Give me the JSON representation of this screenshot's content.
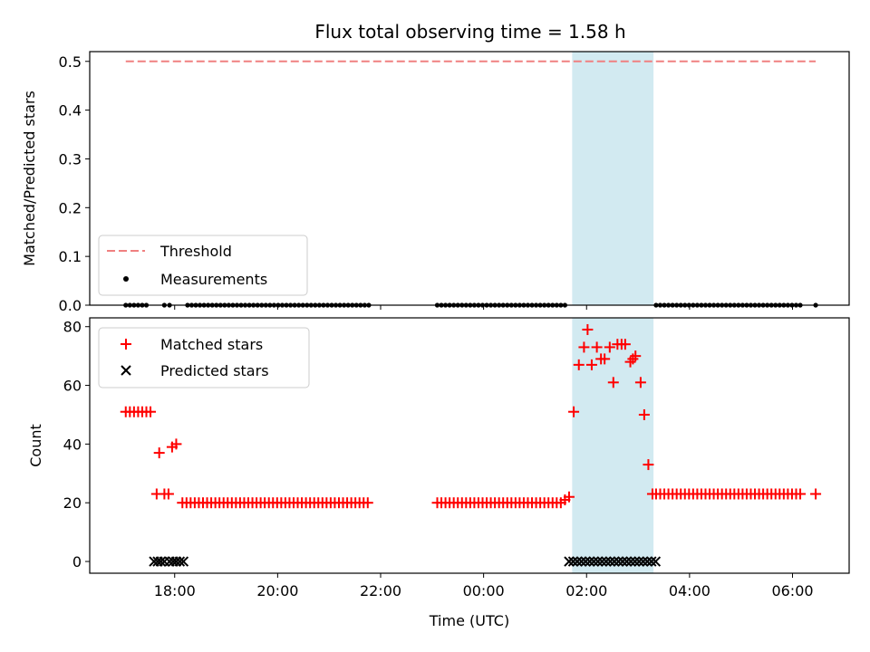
{
  "chart_data": [
    {
      "type": "scatter",
      "title": "Flux total observing time = 1.58 h",
      "xlabel": "",
      "ylabel": "Matched/Predicted stars",
      "ylim": [
        0,
        0.52
      ],
      "yticks": [
        0.0,
        0.1,
        0.2,
        0.3,
        0.4,
        0.5
      ],
      "x_axis": "time (UTC), hours relative to 00:00 on night start; 18:00 = -6",
      "xlim": [
        -7.65,
        7.1
      ],
      "threshold": {
        "name": "Threshold",
        "value": 0.5,
        "x_range": [
          -6.95,
          6.45
        ],
        "color": "#f08080"
      },
      "observing_window": {
        "start": 1.72,
        "end": 3.3,
        "color": "#add8e6"
      },
      "series": [
        {
          "name": "Measurements",
          "color": "#000000",
          "segments": [
            {
              "from": -6.95,
              "to": -6.55,
              "step": 0.08,
              "value": 0
            },
            {
              "from": -6.2,
              "to": -6.1,
              "step": 0.1,
              "value": 0
            },
            {
              "from": -5.75,
              "to": -2.2,
              "step": 0.08,
              "value": 0
            },
            {
              "from": -0.9,
              "to": 1.65,
              "step": 0.08,
              "value": 0
            },
            {
              "from": 3.35,
              "to": 6.2,
              "step": 0.08,
              "value": 0
            },
            {
              "from": 6.45,
              "to": 6.45,
              "step": 0.1,
              "value": 0
            }
          ]
        }
      ],
      "legend": {
        "placement": "lower-left",
        "entries": [
          "Threshold",
          "Measurements"
        ]
      }
    },
    {
      "type": "scatter",
      "title": "",
      "xlabel": "Time (UTC)",
      "ylabel": "Count",
      "ylim": [
        -4,
        83
      ],
      "yticks": [
        0,
        20,
        40,
        60,
        80
      ],
      "xticks": [
        "18:00",
        "20:00",
        "22:00",
        "00:00",
        "02:00",
        "04:00",
        "06:00"
      ],
      "xtick_values": [
        -6,
        -4,
        -2,
        0,
        2,
        4,
        6
      ],
      "observing_window": {
        "start": 1.72,
        "end": 3.3,
        "color": "#add8e6"
      },
      "series": [
        {
          "name": "Matched stars",
          "marker": "plus",
          "color": "#ff0000",
          "points": [
            [
              -6.95,
              51
            ],
            [
              -6.87,
              51
            ],
            [
              -6.79,
              51
            ],
            [
              -6.71,
              51
            ],
            [
              -6.63,
              51
            ],
            [
              -6.55,
              51
            ],
            [
              -6.47,
              51
            ],
            [
              -6.35,
              23
            ],
            [
              -6.3,
              37
            ],
            [
              -6.2,
              23
            ],
            [
              -6.12,
              23
            ],
            [
              -6.05,
              39
            ],
            [
              -5.97,
              40
            ],
            [
              -5.85,
              20
            ],
            [
              -5.77,
              20
            ],
            [
              -5.69,
              20
            ],
            [
              -5.61,
              20
            ],
            [
              -5.53,
              20
            ],
            [
              -5.45,
              20
            ],
            [
              -5.37,
              20
            ],
            [
              -5.29,
              20
            ],
            [
              -5.21,
              20
            ],
            [
              -5.13,
              20
            ],
            [
              -5.05,
              20
            ],
            [
              -4.97,
              20
            ],
            [
              -4.89,
              20
            ],
            [
              -4.81,
              20
            ],
            [
              -4.73,
              20
            ],
            [
              -4.65,
              20
            ],
            [
              -4.57,
              20
            ],
            [
              -4.49,
              20
            ],
            [
              -4.41,
              20
            ],
            [
              -4.33,
              20
            ],
            [
              -4.25,
              20
            ],
            [
              -4.17,
              20
            ],
            [
              -4.09,
              20
            ],
            [
              -4.01,
              20
            ],
            [
              -3.93,
              20
            ],
            [
              -3.85,
              20
            ],
            [
              -3.77,
              20
            ],
            [
              -3.69,
              20
            ],
            [
              -3.61,
              20
            ],
            [
              -3.53,
              20
            ],
            [
              -3.45,
              20
            ],
            [
              -3.37,
              20
            ],
            [
              -3.29,
              20
            ],
            [
              -3.21,
              20
            ],
            [
              -3.13,
              20
            ],
            [
              -3.05,
              20
            ],
            [
              -2.97,
              20
            ],
            [
              -2.89,
              20
            ],
            [
              -2.81,
              20
            ],
            [
              -2.73,
              20
            ],
            [
              -2.65,
              20
            ],
            [
              -2.57,
              20
            ],
            [
              -2.49,
              20
            ],
            [
              -2.41,
              20
            ],
            [
              -2.33,
              20
            ],
            [
              -2.25,
              20
            ],
            [
              -0.9,
              20
            ],
            [
              -0.82,
              20
            ],
            [
              -0.74,
              20
            ],
            [
              -0.66,
              20
            ],
            [
              -0.58,
              20
            ],
            [
              -0.5,
              20
            ],
            [
              -0.42,
              20
            ],
            [
              -0.34,
              20
            ],
            [
              -0.26,
              20
            ],
            [
              -0.18,
              20
            ],
            [
              -0.1,
              20
            ],
            [
              -0.02,
              20
            ],
            [
              0.06,
              20
            ],
            [
              0.14,
              20
            ],
            [
              0.22,
              20
            ],
            [
              0.3,
              20
            ],
            [
              0.38,
              20
            ],
            [
              0.46,
              20
            ],
            [
              0.54,
              20
            ],
            [
              0.62,
              20
            ],
            [
              0.7,
              20
            ],
            [
              0.78,
              20
            ],
            [
              0.86,
              20
            ],
            [
              0.94,
              20
            ],
            [
              1.02,
              20
            ],
            [
              1.1,
              20
            ],
            [
              1.18,
              20
            ],
            [
              1.26,
              20
            ],
            [
              1.34,
              20
            ],
            [
              1.42,
              20
            ],
            [
              1.5,
              20
            ],
            [
              1.58,
              21
            ],
            [
              1.66,
              22
            ],
            [
              1.75,
              51
            ],
            [
              1.85,
              67
            ],
            [
              1.95,
              73
            ],
            [
              2.02,
              79
            ],
            [
              2.1,
              67
            ],
            [
              2.2,
              73
            ],
            [
              2.28,
              69
            ],
            [
              2.35,
              69
            ],
            [
              2.45,
              73
            ],
            [
              2.52,
              61
            ],
            [
              2.6,
              74
            ],
            [
              2.68,
              74
            ],
            [
              2.75,
              74
            ],
            [
              2.85,
              68
            ],
            [
              2.9,
              69
            ],
            [
              2.95,
              70
            ],
            [
              3.05,
              61
            ],
            [
              3.12,
              50
            ],
            [
              3.2,
              33
            ],
            [
              3.28,
              23
            ],
            [
              3.35,
              23
            ],
            [
              3.43,
              23
            ],
            [
              3.51,
              23
            ],
            [
              3.59,
              23
            ],
            [
              3.67,
              23
            ],
            [
              3.75,
              23
            ],
            [
              3.83,
              23
            ],
            [
              3.91,
              23
            ],
            [
              3.99,
              23
            ],
            [
              4.07,
              23
            ],
            [
              4.15,
              23
            ],
            [
              4.23,
              23
            ],
            [
              4.31,
              23
            ],
            [
              4.39,
              23
            ],
            [
              4.47,
              23
            ],
            [
              4.55,
              23
            ],
            [
              4.63,
              23
            ],
            [
              4.71,
              23
            ],
            [
              4.79,
              23
            ],
            [
              4.87,
              23
            ],
            [
              4.95,
              23
            ],
            [
              5.03,
              23
            ],
            [
              5.11,
              23
            ],
            [
              5.19,
              23
            ],
            [
              5.27,
              23
            ],
            [
              5.35,
              23
            ],
            [
              5.43,
              23
            ],
            [
              5.51,
              23
            ],
            [
              5.59,
              23
            ],
            [
              5.67,
              23
            ],
            [
              5.75,
              23
            ],
            [
              5.83,
              23
            ],
            [
              5.91,
              23
            ],
            [
              5.99,
              23
            ],
            [
              6.07,
              23
            ],
            [
              6.15,
              23
            ],
            [
              6.45,
              23
            ]
          ]
        },
        {
          "name": "Predicted stars",
          "marker": "x",
          "color": "#000000",
          "points": [
            [
              -6.4,
              0
            ],
            [
              -6.33,
              0
            ],
            [
              -6.27,
              0
            ],
            [
              -6.2,
              0
            ],
            [
              -6.1,
              0
            ],
            [
              -6.03,
              0
            ],
            [
              -5.97,
              0
            ],
            [
              -5.9,
              0
            ],
            [
              -5.83,
              0
            ],
            [
              1.66,
              0
            ],
            [
              1.74,
              0
            ],
            [
              1.82,
              0
            ],
            [
              1.9,
              0
            ],
            [
              1.98,
              0
            ],
            [
              2.06,
              0
            ],
            [
              2.14,
              0
            ],
            [
              2.22,
              0
            ],
            [
              2.3,
              0
            ],
            [
              2.38,
              0
            ],
            [
              2.46,
              0
            ],
            [
              2.54,
              0
            ],
            [
              2.62,
              0
            ],
            [
              2.7,
              0
            ],
            [
              2.78,
              0
            ],
            [
              2.86,
              0
            ],
            [
              2.94,
              0
            ],
            [
              3.02,
              0
            ],
            [
              3.1,
              0
            ],
            [
              3.18,
              0
            ],
            [
              3.26,
              0
            ],
            [
              3.34,
              0
            ]
          ]
        }
      ],
      "legend": {
        "placement": "upper-left",
        "entries": [
          "Matched stars",
          "Predicted stars"
        ]
      }
    }
  ]
}
